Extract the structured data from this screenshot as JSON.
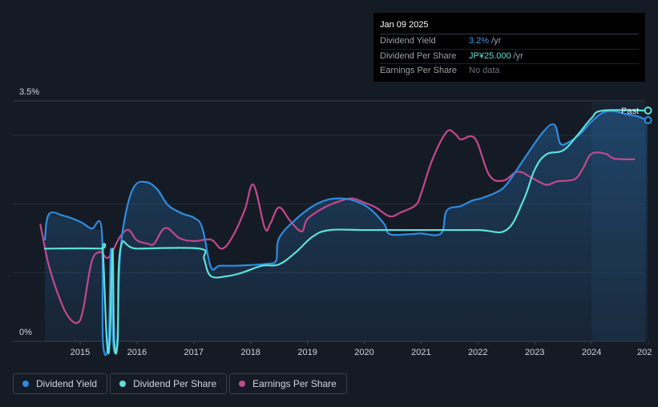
{
  "tooltip": {
    "date": "Jan 09 2025",
    "rows": [
      {
        "label": "Dividend Yield",
        "value": "3.2%",
        "unit": "/yr"
      },
      {
        "label": "Dividend Per Share",
        "value": "JP¥25.000",
        "unit": "/yr"
      },
      {
        "label": "Earnings Per Share",
        "value": "No data"
      }
    ]
  },
  "legend": [
    {
      "label": "Dividend Yield",
      "color": "#2e8ce0"
    },
    {
      "label": "Dividend Per Share",
      "color": "#5ce1d9"
    },
    {
      "label": "Earnings Per Share",
      "color": "#c2488c"
    }
  ],
  "chart_data": {
    "type": "line",
    "x_range": [
      2014.0,
      2025.0
    ],
    "y_range_pct": [
      0,
      3.5
    ],
    "y_tick_labels": [
      "3.5%",
      "0%"
    ],
    "x_tick_labels": [
      "2015",
      "2016",
      "2017",
      "2018",
      "2019",
      "2020",
      "2021",
      "2022",
      "2023",
      "2024",
      "202"
    ],
    "past_label": "Past",
    "forecast_start": 2024.0,
    "series": [
      {
        "name": "Dividend Yield",
        "color": "#2e8ce0",
        "unit": "%",
        "points": [
          [
            2014.38,
            1.48
          ],
          [
            2014.45,
            1.85
          ],
          [
            2014.7,
            1.83
          ],
          [
            2015.0,
            1.74
          ],
          [
            2015.2,
            1.64
          ],
          [
            2015.38,
            1.62
          ],
          [
            2015.4,
            0.0
          ],
          [
            2015.5,
            0.0
          ],
          [
            2015.54,
            1.35
          ],
          [
            2015.58,
            0.0
          ],
          [
            2015.65,
            0.0
          ],
          [
            2015.7,
            1.2
          ],
          [
            2015.8,
            1.85
          ],
          [
            2015.95,
            2.25
          ],
          [
            2016.15,
            2.32
          ],
          [
            2016.35,
            2.22
          ],
          [
            2016.55,
            1.98
          ],
          [
            2016.8,
            1.86
          ],
          [
            2017.0,
            1.8
          ],
          [
            2017.15,
            1.65
          ],
          [
            2017.3,
            1.08
          ],
          [
            2017.45,
            1.1
          ],
          [
            2017.7,
            1.1
          ],
          [
            2018.0,
            1.11
          ],
          [
            2018.3,
            1.13
          ],
          [
            2018.45,
            1.18
          ],
          [
            2018.5,
            1.5
          ],
          [
            2018.8,
            1.78
          ],
          [
            2019.1,
            1.97
          ],
          [
            2019.35,
            2.06
          ],
          [
            2019.6,
            2.08
          ],
          [
            2019.85,
            2.04
          ],
          [
            2020.1,
            1.93
          ],
          [
            2020.35,
            1.71
          ],
          [
            2020.45,
            1.56
          ],
          [
            2020.8,
            1.56
          ],
          [
            2021.0,
            1.57
          ],
          [
            2021.35,
            1.57
          ],
          [
            2021.45,
            1.9
          ],
          [
            2021.7,
            1.97
          ],
          [
            2021.9,
            2.05
          ],
          [
            2022.05,
            2.08
          ],
          [
            2022.3,
            2.16
          ],
          [
            2022.5,
            2.28
          ],
          [
            2022.8,
            2.64
          ],
          [
            2023.15,
            3.05
          ],
          [
            2023.35,
            3.15
          ],
          [
            2023.45,
            2.88
          ],
          [
            2023.6,
            2.9
          ],
          [
            2023.8,
            3.02
          ],
          [
            2024.0,
            3.2
          ],
          [
            2024.2,
            3.33
          ],
          [
            2024.4,
            3.35
          ],
          [
            2024.65,
            3.3
          ],
          [
            2024.8,
            3.28
          ],
          [
            2024.98,
            3.22
          ]
        ]
      },
      {
        "name": "Dividend Per Share",
        "color": "#5ce1d9",
        "unit": "JP¥",
        "points": [
          [
            2014.38,
            1.35
          ],
          [
            2015.35,
            1.35
          ],
          [
            2015.4,
            1.3
          ],
          [
            2015.47,
            0.0
          ],
          [
            2015.52,
            0.0
          ],
          [
            2015.57,
            1.35
          ],
          [
            2015.6,
            0.0
          ],
          [
            2015.66,
            0.0
          ],
          [
            2015.71,
            1.35
          ],
          [
            2016.0,
            1.35
          ],
          [
            2017.1,
            1.35
          ],
          [
            2017.18,
            1.2
          ],
          [
            2017.3,
            0.95
          ],
          [
            2017.6,
            0.95
          ],
          [
            2017.85,
            1.0
          ],
          [
            2018.2,
            1.1
          ],
          [
            2018.5,
            1.12
          ],
          [
            2018.8,
            1.3
          ],
          [
            2019.1,
            1.53
          ],
          [
            2019.4,
            1.62
          ],
          [
            2020.0,
            1.62
          ],
          [
            2021.0,
            1.62
          ],
          [
            2022.0,
            1.62
          ],
          [
            2022.5,
            1.62
          ],
          [
            2022.8,
            2.05
          ],
          [
            2023.0,
            2.5
          ],
          [
            2023.2,
            2.72
          ],
          [
            2023.5,
            2.78
          ],
          [
            2023.75,
            3.0
          ],
          [
            2024.0,
            3.25
          ],
          [
            2024.2,
            3.36
          ],
          [
            2024.98,
            3.36
          ]
        ]
      },
      {
        "name": "Earnings Per Share",
        "color": "#c2488c",
        "unit": "JP¥",
        "points": [
          [
            2014.3,
            1.7
          ],
          [
            2014.45,
            1.1
          ],
          [
            2014.65,
            0.6
          ],
          [
            2014.8,
            0.35
          ],
          [
            2014.95,
            0.27
          ],
          [
            2015.05,
            0.45
          ],
          [
            2015.2,
            1.15
          ],
          [
            2015.35,
            1.3
          ],
          [
            2015.5,
            1.22
          ],
          [
            2015.7,
            1.52
          ],
          [
            2015.85,
            1.62
          ],
          [
            2016.0,
            1.47
          ],
          [
            2016.2,
            1.42
          ],
          [
            2016.3,
            1.42
          ],
          [
            2016.5,
            1.65
          ],
          [
            2016.75,
            1.5
          ],
          [
            2017.0,
            1.46
          ],
          [
            2017.3,
            1.48
          ],
          [
            2017.5,
            1.35
          ],
          [
            2017.7,
            1.55
          ],
          [
            2017.9,
            1.92
          ],
          [
            2018.05,
            2.28
          ],
          [
            2018.25,
            1.65
          ],
          [
            2018.35,
            1.72
          ],
          [
            2018.5,
            1.95
          ],
          [
            2018.7,
            1.75
          ],
          [
            2018.9,
            1.6
          ],
          [
            2019.0,
            1.78
          ],
          [
            2019.3,
            1.95
          ],
          [
            2019.6,
            2.05
          ],
          [
            2019.8,
            2.08
          ],
          [
            2020.0,
            2.02
          ],
          [
            2020.2,
            1.95
          ],
          [
            2020.45,
            1.82
          ],
          [
            2020.65,
            1.88
          ],
          [
            2020.9,
            1.98
          ],
          [
            2021.0,
            2.15
          ],
          [
            2021.2,
            2.65
          ],
          [
            2021.45,
            3.05
          ],
          [
            2021.6,
            3.02
          ],
          [
            2021.7,
            2.94
          ],
          [
            2021.95,
            2.95
          ],
          [
            2022.2,
            2.42
          ],
          [
            2022.45,
            2.34
          ],
          [
            2022.7,
            2.47
          ],
          [
            2022.95,
            2.38
          ],
          [
            2023.2,
            2.28
          ],
          [
            2023.4,
            2.33
          ],
          [
            2023.7,
            2.36
          ],
          [
            2023.85,
            2.52
          ],
          [
            2024.0,
            2.73
          ],
          [
            2024.25,
            2.73
          ],
          [
            2024.4,
            2.66
          ],
          [
            2024.75,
            2.65
          ]
        ]
      }
    ]
  }
}
